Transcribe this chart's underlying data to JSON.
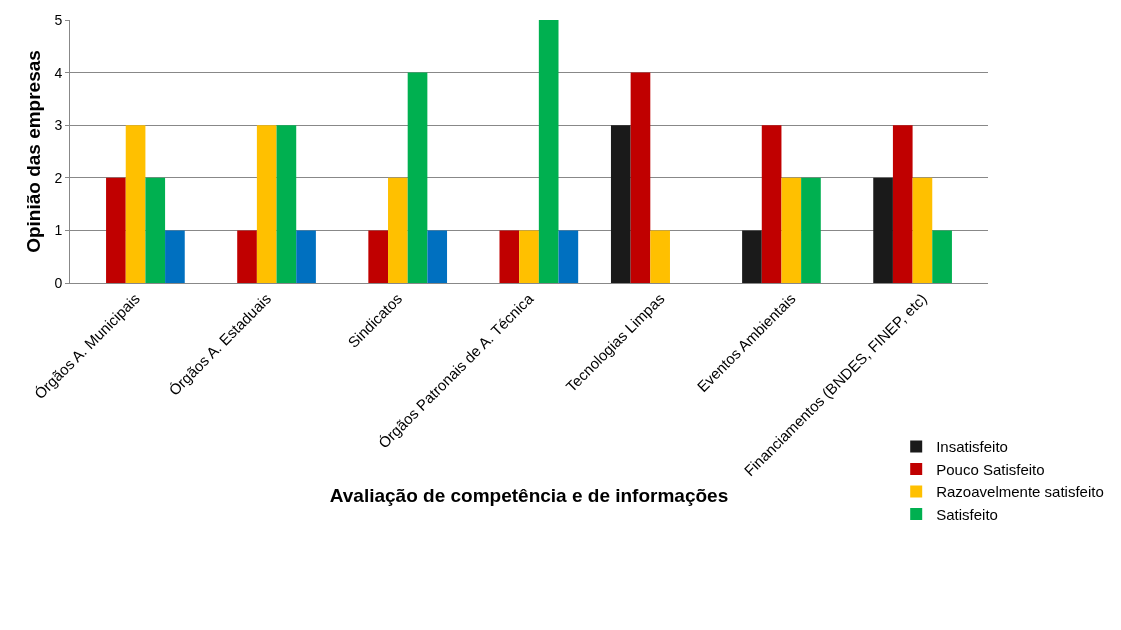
{
  "chart_data": {
    "type": "bar",
    "xlabel": "Avaliação de competência e de informações",
    "ylabel": "Opinião das empresas",
    "categories": [
      "Órgãos A. Municipais",
      "Órgãos A. Estaduais",
      "Sindicatos",
      "Órgãos Patronais de A. Técnica",
      "Tecnologias Limpas",
      "Eventos Ambientais",
      "Financiamentos (BNDES, FINEP, etc)"
    ],
    "series": [
      {
        "name": "Insatisfeito",
        "color": "#1a1a1a",
        "values": [
          null,
          null,
          null,
          null,
          3,
          1,
          2
        ]
      },
      {
        "name": "Pouco Satisfeito",
        "color": "#c00000",
        "values": [
          2,
          1,
          1,
          1,
          4,
          3,
          3
        ]
      },
      {
        "name": "Razoavelmente satisfeito",
        "color": "#ffc000",
        "values": [
          3,
          3,
          2,
          1,
          1,
          2,
          2
        ]
      },
      {
        "name": "Satisfeito",
        "color": "#00b050",
        "values": [
          2,
          3,
          4,
          5,
          null,
          2,
          1
        ]
      },
      {
        "color": "#0070c0",
        "values": [
          1,
          1,
          1,
          1,
          null,
          null,
          null
        ]
      }
    ],
    "ylim": [
      0,
      5
    ],
    "yticks": [
      0,
      1,
      2,
      3,
      4,
      5
    ],
    "grid": "y",
    "legend": "bottom right"
  }
}
